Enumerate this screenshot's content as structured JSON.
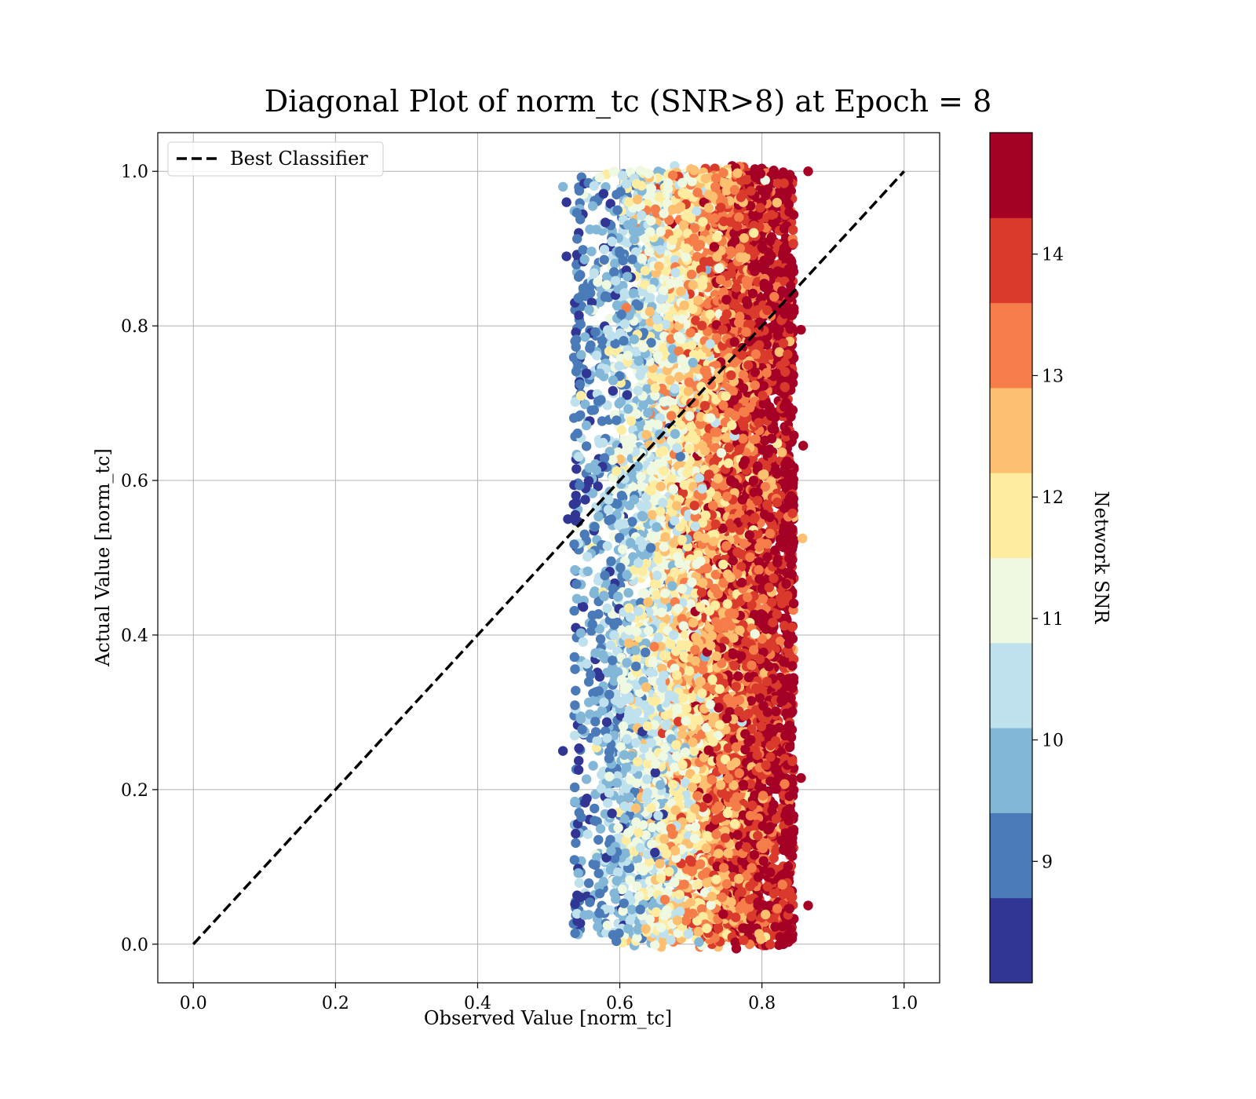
{
  "chart_data": {
    "type": "scatter",
    "title": "Diagonal Plot of norm_tc (SNR>8) at Epoch = 8",
    "xlabel": "Observed Value [norm_tc]",
    "ylabel": "Actual Value [norm_tc]",
    "xlim": [
      -0.05,
      1.05
    ],
    "ylim": [
      -0.05,
      1.05
    ],
    "xticks": [
      "0.0",
      "0.2",
      "0.4",
      "0.6",
      "0.8",
      "1.0"
    ],
    "yticks": [
      "0.0",
      "0.2",
      "0.4",
      "0.6",
      "0.8",
      "1.0"
    ],
    "grid": true,
    "legend": {
      "position": "top-left",
      "entries": [
        {
          "label": "Best Classifier",
          "style": "dashed",
          "color": "#000000"
        }
      ]
    },
    "reference_line": {
      "name": "Best Classifier",
      "x": [
        0.0,
        1.0
      ],
      "y": [
        0.0,
        1.0
      ]
    },
    "scatter": {
      "x_range": [
        0.525,
        0.865
      ],
      "y_range": [
        0.0,
        1.0
      ],
      "point_count_estimate": 9000,
      "color_by": "Network SNR",
      "pattern": "x increases with SNR; highest-SNR points concentrate near x 0.70-0.85, low-SNR points near x 0.53-0.60",
      "outliers": [
        {
          "x": 0.865,
          "y": 1.0,
          "snr": 14.5
        },
        {
          "x": 0.855,
          "y": 0.795,
          "snr": 14.5
        },
        {
          "x": 0.858,
          "y": 0.645,
          "snr": 14.5
        },
        {
          "x": 0.857,
          "y": 0.525,
          "snr": 12.3
        },
        {
          "x": 0.865,
          "y": 0.05,
          "snr": 14.5
        },
        {
          "x": 0.855,
          "y": 0.215,
          "snr": 14.5
        },
        {
          "x": 0.52,
          "y": 0.98,
          "snr": 9.8
        },
        {
          "x": 0.525,
          "y": 0.96,
          "snr": 8.3
        },
        {
          "x": 0.525,
          "y": 0.89,
          "snr": 8.3
        },
        {
          "x": 0.527,
          "y": 0.55,
          "snr": 8.3
        },
        {
          "x": 0.52,
          "y": 0.25,
          "snr": 8.3
        }
      ]
    },
    "colorbar": {
      "label": "Network SNR",
      "range": [
        8,
        15
      ],
      "ticks": [
        "9",
        "10",
        "11",
        "12",
        "13",
        "14"
      ],
      "tick_values": [
        9,
        10,
        11,
        12,
        13,
        14
      ],
      "boundaries": [
        8,
        8.7,
        9.4,
        10.1,
        10.8,
        11.5,
        12.2,
        12.9,
        13.6,
        14.3,
        15
      ],
      "colors": [
        "#313695",
        "#4a7ab7",
        "#82b7d7",
        "#bfe1ed",
        "#eff8e0",
        "#feeda1",
        "#fdbf70",
        "#f57d4a",
        "#d93a2c",
        "#a50026"
      ]
    }
  }
}
